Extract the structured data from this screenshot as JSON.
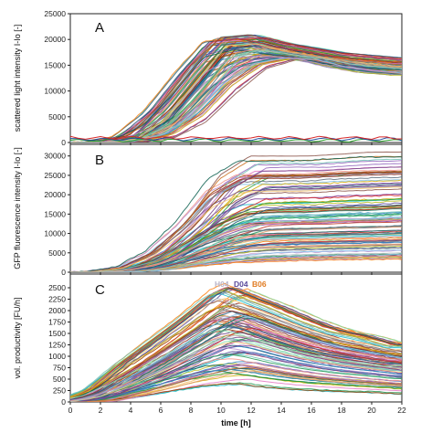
{
  "chart_data": [
    {
      "type": "line",
      "panel": "A",
      "ylabel": "scattered light intensity I-Io [-]",
      "xlabel": "",
      "xlim": [
        0,
        22
      ],
      "ylim": [
        0,
        25000
      ],
      "x_ticks": [
        0,
        2,
        4,
        6,
        8,
        10,
        12,
        14,
        16,
        18,
        20,
        22
      ],
      "y_ticks": [
        0,
        5000,
        10000,
        15000,
        20000,
        25000
      ],
      "grid": false,
      "series_count_approx": 96,
      "envelope": {
        "x": [
          0,
          2,
          4,
          6,
          8,
          10,
          12,
          14,
          16,
          18,
          20,
          22
        ],
        "typical_max": [
          0,
          100,
          1500,
          7500,
          15000,
          20500,
          21000,
          19500,
          18500,
          17500,
          17000,
          16500
        ],
        "typical_median": [
          0,
          50,
          700,
          4000,
          11000,
          18500,
          19000,
          17500,
          16500,
          15500,
          15000,
          14500
        ],
        "typical_min": [
          0,
          0,
          100,
          800,
          3500,
          9000,
          14000,
          16000,
          16000,
          14500,
          13500,
          13000
        ]
      },
      "notes_on_outliers": "a few curves remain near 0-1500 throughout"
    },
    {
      "type": "line",
      "panel": "B",
      "ylabel": "GFP fluorescence intensity I-Io [-]",
      "xlabel": "",
      "xlim": [
        0,
        22
      ],
      "ylim": [
        0,
        33000
      ],
      "x_ticks": [
        0,
        2,
        4,
        6,
        8,
        10,
        12,
        14,
        16,
        18,
        20,
        22
      ],
      "y_ticks": [
        0,
        5000,
        10000,
        15000,
        20000,
        25000,
        30000
      ],
      "grid": false,
      "series_count_approx": 96,
      "envelope": {
        "x": [
          0,
          2,
          4,
          6,
          8,
          10,
          12,
          14,
          16,
          18,
          20,
          22
        ],
        "typical_max": [
          0,
          200,
          1500,
          6000,
          14000,
          25000,
          30000,
          30000,
          30000,
          30500,
          31000,
          31000
        ],
        "typical_median": [
          0,
          100,
          800,
          3000,
          7500,
          12000,
          15000,
          15500,
          15500,
          16000,
          16000,
          16500
        ],
        "typical_min": [
          0,
          0,
          100,
          500,
          1200,
          2000,
          2500,
          2800,
          3000,
          3100,
          3200,
          3300
        ]
      }
    },
    {
      "type": "line",
      "panel": "C",
      "ylabel": "vol. productivity [FU/h]",
      "xlabel": "time [h]",
      "xlim": [
        0,
        22
      ],
      "ylim": [
        0,
        2800
      ],
      "x_ticks": [
        0,
        2,
        4,
        6,
        8,
        10,
        12,
        14,
        16,
        18,
        20,
        22
      ],
      "y_ticks": [
        0,
        250,
        500,
        750,
        1000,
        1250,
        1500,
        1750,
        2000,
        2250,
        2500
      ],
      "grid": false,
      "series_count_approx": 96,
      "annotations": [
        {
          "text": "H04",
          "color": "#b9b4c9"
        },
        {
          "text": "D04",
          "color": "#5a4a9a"
        },
        {
          "text": "B06",
          "color": "#e07b22"
        }
      ],
      "envelope": {
        "x": [
          0,
          2,
          4,
          6,
          8,
          10,
          11,
          12,
          14,
          16,
          18,
          20,
          22
        ],
        "typical_max": [
          0,
          300,
          900,
          1400,
          1900,
          2450,
          2600,
          2450,
          2200,
          1900,
          1650,
          1500,
          1300
        ],
        "typical_median": [
          0,
          150,
          450,
          800,
          1200,
          1600,
          1700,
          1650,
          1400,
          1200,
          1050,
          950,
          850
        ],
        "typical_min": [
          0,
          0,
          100,
          200,
          300,
          350,
          350,
          300,
          250,
          220,
          200,
          180,
          150
        ]
      }
    }
  ]
}
